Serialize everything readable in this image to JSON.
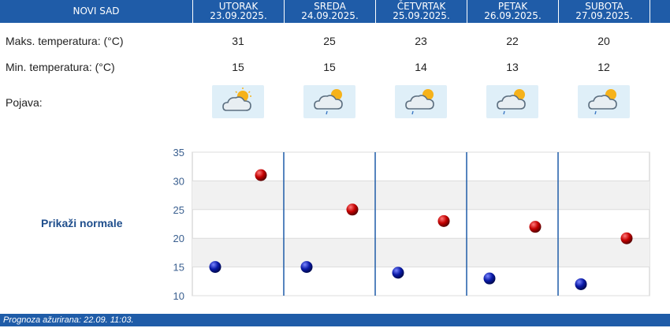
{
  "header": {
    "city": "NOVI SAD",
    "days": [
      {
        "day": "UTORAK",
        "date": "23.09.2025."
      },
      {
        "day": "SREDA",
        "date": "24.09.2025."
      },
      {
        "day": "ČETVRTAK",
        "date": "25.09.2025."
      },
      {
        "day": "PETAK",
        "date": "26.09.2025."
      },
      {
        "day": "SUBOTA",
        "date": "27.09.2025."
      }
    ]
  },
  "rows": {
    "max_label": "Maks. temperatura: (°C)",
    "min_label": "Min. temperatura: (°C)",
    "phenomenon_label": "Pojava:"
  },
  "max_values": [
    "31",
    "25",
    "23",
    "22",
    "20"
  ],
  "min_values": [
    "15",
    "15",
    "14",
    "13",
    "12"
  ],
  "icons": [
    "partly-cloudy-icon",
    "cloud-sun-drizzle-icon",
    "cloud-sun-drizzle-icon",
    "cloud-sun-drizzle-icon",
    "cloud-sun-drizzle-icon"
  ],
  "normals_label": "Prikaži normale",
  "footer": {
    "text": "Prognoza ažurirana:  22.09. 11:03."
  },
  "colors": {
    "header": "#1f5ca8",
    "max_marker": "#c40000",
    "min_marker": "#0a1aa8"
  },
  "chart_data": {
    "type": "scatter",
    "categories": [
      "UTORAK",
      "SREDA",
      "ČETVRTAK",
      "PETAK",
      "SUBOTA"
    ],
    "series": [
      {
        "values": [
          31,
          25,
          23,
          22,
          20
        ]
      },
      {
        "values": [
          15,
          15,
          14,
          13,
          12
        ]
      }
    ],
    "ylim": [
      10,
      35
    ],
    "yticks": [
      "10",
      "15",
      "20",
      "25",
      "30",
      "35"
    ],
    "grid": true
  }
}
